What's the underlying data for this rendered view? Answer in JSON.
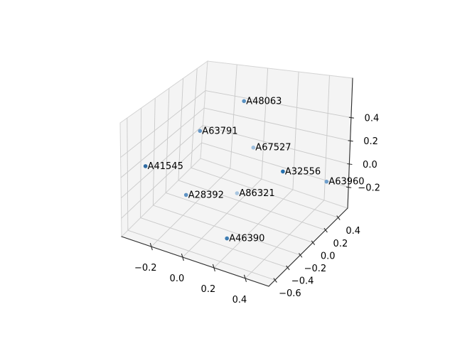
{
  "chart_data": {
    "type": "scatter",
    "subtype": "3d-scatter",
    "title": "",
    "xlabel": "",
    "ylabel": "",
    "zlabel": "",
    "grid": true,
    "background_color": "#ffffff",
    "pane_color": "#f2f2f2",
    "grid_color": "#c9c9c9",
    "axis_line_color": "#2b2b2b",
    "marker_base_color": "#1f77b4",
    "axes": {
      "xlim": [
        -0.39,
        0.55
      ],
      "ylim": [
        -0.7,
        0.55
      ],
      "zlim": [
        -0.38,
        0.74
      ],
      "x_ticks": [
        "−0.2",
        "0.0",
        "0.2",
        "0.4"
      ],
      "y_ticks": [
        "0.4",
        "0.2",
        "0.0",
        "−0.2",
        "−0.4",
        "−0.6"
      ],
      "z_ticks": [
        "0.4",
        "0.2",
        "0.0",
        "−0.2"
      ]
    },
    "points": [
      {
        "label": "A48063",
        "x": -0.05,
        "y": 0.34,
        "z": 0.45,
        "color": "#5a92c2"
      },
      {
        "label": "A63791",
        "x": -0.19,
        "y": 0.0,
        "z": 0.3,
        "color": "#6697c6"
      },
      {
        "label": "A67527",
        "x": 0.07,
        "y": 0.21,
        "z": 0.15,
        "color": "#9dbedd"
      },
      {
        "label": "A41545",
        "x": -0.28,
        "y": -0.64,
        "z": 0.3,
        "color": "#2e6ba3"
      },
      {
        "label": "A32556",
        "x": 0.4,
        "y": -0.15,
        "z": 0.3,
        "color": "#2470ae"
      },
      {
        "label": "A63960",
        "x": 0.46,
        "y": 0.42,
        "z": -0.1,
        "color": "#6f9fcc"
      },
      {
        "label": "A28392",
        "x": -0.17,
        "y": -0.24,
        "z": -0.15,
        "color": "#5e93c4"
      },
      {
        "label": "A86321",
        "x": 0.04,
        "y": 0.05,
        "z": -0.2,
        "color": "#a9c6e0"
      },
      {
        "label": "A46390",
        "x": 0.16,
        "y": -0.4,
        "z": -0.3,
        "color": "#3d7cb2"
      }
    ]
  }
}
